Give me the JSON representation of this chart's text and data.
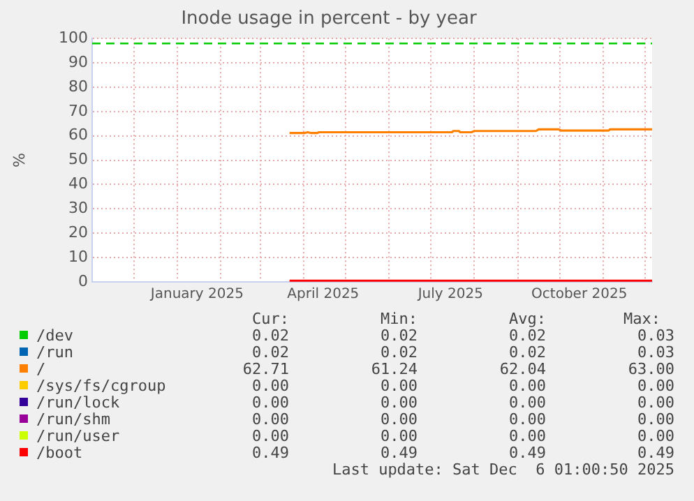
{
  "chart_data": {
    "type": "line",
    "title": "Inode usage in percent - by year",
    "ylabel": "%",
    "xlim": [
      "2024-11-01",
      "2025-12-06"
    ],
    "ylim": [
      0,
      100
    ],
    "yticks": [
      0,
      10,
      20,
      30,
      40,
      50,
      60,
      70,
      80,
      90,
      100
    ],
    "xticks": [
      {
        "value": "2024-12-01",
        "label": null
      },
      {
        "value": "2025-01-01",
        "label": null
      },
      {
        "value": "2025-01-15",
        "label": "January 2025"
      },
      {
        "value": "2025-02-01",
        "label": null
      },
      {
        "value": "2025-03-01",
        "label": null
      },
      {
        "value": "2025-04-01",
        "label": null
      },
      {
        "value": "2025-04-15",
        "label": "April 2025"
      },
      {
        "value": "2025-05-01",
        "label": null
      },
      {
        "value": "2025-06-01",
        "label": null
      },
      {
        "value": "2025-07-01",
        "label": null
      },
      {
        "value": "2025-07-15",
        "label": "July 2025"
      },
      {
        "value": "2025-08-01",
        "label": null
      },
      {
        "value": "2025-09-01",
        "label": null
      },
      {
        "value": "2025-10-01",
        "label": null
      },
      {
        "value": "2025-10-15",
        "label": "October 2025"
      },
      {
        "value": "2025-11-01",
        "label": null
      },
      {
        "value": "2025-12-01",
        "label": null
      }
    ],
    "grid": true,
    "legend": "bottom",
    "marker": "none",
    "series": [
      {
        "name": "/dev",
        "color": "#00cc00"
      },
      {
        "name": "/run",
        "color": "#0066b3"
      },
      {
        "name": "/",
        "color": "#ff8000",
        "x": [
          "2025-03-22",
          "2025-04-02",
          "2025-04-04",
          "2025-04-06",
          "2025-04-11",
          "2025-04-12",
          "2025-07-16",
          "2025-07-17",
          "2025-07-21",
          "2025-07-22",
          "2025-07-30",
          "2025-08-01",
          "2025-09-14",
          "2025-09-16",
          "2025-09-30",
          "2025-10-02",
          "2025-11-05",
          "2025-11-06",
          "2025-12-06"
        ],
        "values": [
          61.2,
          61.2,
          61.5,
          61.2,
          61.2,
          61.5,
          61.5,
          62,
          62,
          61.5,
          61.5,
          62,
          62,
          62.7,
          62.7,
          62.2,
          62.2,
          62.7,
          62.7
        ]
      },
      {
        "name": "/sys/fs/cgroup",
        "color": "#ffcc00"
      },
      {
        "name": "/run/lock",
        "color": "#330099"
      },
      {
        "name": "/run/shm",
        "color": "#990099"
      },
      {
        "name": "/run/user",
        "color": "#ccff00"
      },
      {
        "name": "/boot",
        "color": "#ff0000",
        "x": [
          "2025-03-22",
          "2025-12-06"
        ],
        "values": [
          0.5,
          0.5
        ]
      }
    ],
    "ref_lines": [
      {
        "axis": "y",
        "value": 98,
        "color": "#00cc00",
        "line_style": "dashed"
      }
    ],
    "annotations": [
      "Cur:",
      "Min:",
      "Avg:",
      "Max:",
      "0.02",
      "0.02",
      "0.02",
      "0.03",
      "0.02",
      "0.02",
      "0.02",
      "0.03",
      "62.71",
      "61.24",
      "62.04",
      "63.00",
      "0.00",
      "0.00",
      "0.00",
      "0.00",
      "0.00",
      "0.00",
      "0.00",
      "0.00",
      "0.00",
      "0.00",
      "0.00",
      "0.00",
      "0.00",
      "0.00",
      "0.00",
      "0.00",
      "0.49",
      "0.49",
      "0.49",
      "0.49",
      "Last update: Sat Dec  6 01:00:50 2025"
    ]
  }
}
